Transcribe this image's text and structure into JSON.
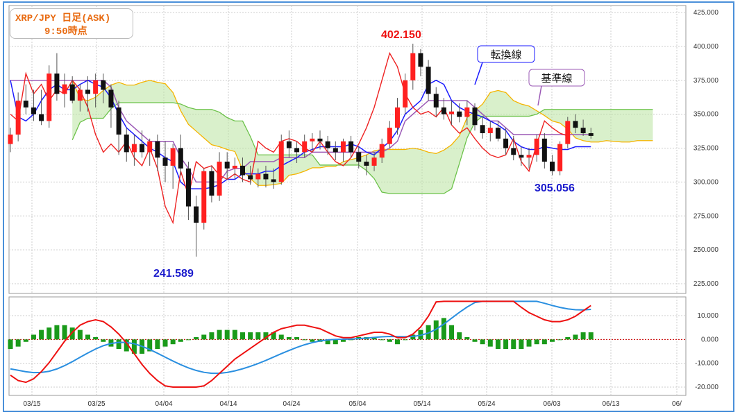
{
  "title_line1": "XRP/JPY 日足(ASK)",
  "title_line2": "9:50時点",
  "colors": {
    "bullish": "#ff2020",
    "bearish": "#111111",
    "tenkan": "#1a1aff",
    "kijun": "#9b59b6",
    "span_a": "#f5b400",
    "span_b": "#6cc24a",
    "chikou": "#ee2222",
    "macd": "#ee1111",
    "signal": "#2a8fe0",
    "histogram": "#1a9a1a",
    "annotation_high": "#ee1111",
    "annotation_low": "#1a1acc"
  },
  "chart_data": [
    {
      "type": "candlestick",
      "title": "XRP/JPY 日足(ASK)",
      "ylim": [
        220,
        425
      ],
      "y_ticks": [
        "425.000",
        "400.000",
        "375.000",
        "350.000",
        "325.000",
        "300.000",
        "275.000",
        "250.000",
        "225.000"
      ],
      "x_ticks": [
        "03/15",
        "03/25",
        "04/04",
        "04/14",
        "04/24",
        "05/04",
        "05/14",
        "05/24",
        "06/03",
        "06/13",
        "06/"
      ],
      "candles": [
        [
          328,
          340,
          322,
          335
        ],
        [
          335,
          366,
          330,
          360
        ],
        [
          360,
          372,
          350,
          355
        ],
        [
          355,
          368,
          345,
          350
        ],
        [
          350,
          368,
          342,
          345
        ],
        [
          345,
          386,
          340,
          380
        ],
        [
          380,
          395,
          360,
          365
        ],
        [
          365,
          380,
          355,
          372
        ],
        [
          372,
          378,
          358,
          360
        ],
        [
          360,
          372,
          352,
          368
        ],
        [
          368,
          378,
          352,
          365
        ],
        [
          365,
          380,
          355,
          375
        ],
        [
          375,
          380,
          358,
          368
        ],
        [
          368,
          372,
          340,
          355
        ],
        [
          355,
          360,
          320,
          335
        ],
        [
          335,
          340,
          315,
          322
        ],
        [
          322,
          335,
          312,
          328
        ],
        [
          328,
          338,
          318,
          322
        ],
        [
          322,
          332,
          312,
          330
        ],
        [
          330,
          335,
          308,
          318
        ],
        [
          318,
          330,
          300,
          312
        ],
        [
          312,
          328,
          295,
          325
        ],
        [
          325,
          335,
          305,
          310
        ],
        [
          310,
          315,
          272,
          282
        ],
        [
          282,
          290,
          245,
          270
        ],
        [
          270,
          310,
          265,
          308
        ],
        [
          308,
          312,
          285,
          290
        ],
        [
          290,
          322,
          286,
          315
        ],
        [
          315,
          322,
          302,
          310
        ],
        [
          310,
          318,
          302,
          312
        ],
        [
          312,
          318,
          300,
          305
        ],
        [
          305,
          312,
          298,
          302
        ],
        [
          302,
          310,
          296,
          306
        ],
        [
          306,
          312,
          296,
          302
        ],
        [
          302,
          310,
          295,
          300
        ],
        [
          300,
          335,
          298,
          330
        ],
        [
          330,
          338,
          318,
          325
        ],
        [
          325,
          330,
          314,
          322
        ],
        [
          322,
          335,
          318,
          330
        ],
        [
          330,
          336,
          322,
          332
        ],
        [
          332,
          338,
          324,
          330
        ],
        [
          330,
          334,
          320,
          325
        ],
        [
          325,
          330,
          316,
          322
        ],
        [
          322,
          332,
          315,
          330
        ],
        [
          330,
          334,
          318,
          322
        ],
        [
          322,
          326,
          310,
          315
        ],
        [
          315,
          320,
          305,
          312
        ],
        [
          312,
          322,
          308,
          318
        ],
        [
          318,
          332,
          314,
          328
        ],
        [
          328,
          345,
          325,
          340
        ],
        [
          340,
          362,
          335,
          355
        ],
        [
          355,
          380,
          350,
          375
        ],
        [
          375,
          402,
          368,
          395
        ],
        [
          395,
          398,
          378,
          385
        ],
        [
          385,
          390,
          360,
          365
        ],
        [
          365,
          370,
          348,
          355
        ],
        [
          355,
          362,
          346,
          350
        ],
        [
          350,
          360,
          342,
          352
        ],
        [
          352,
          358,
          344,
          348
        ],
        [
          348,
          360,
          342,
          355
        ],
        [
          355,
          358,
          338,
          342
        ],
        [
          342,
          348,
          332,
          336
        ],
        [
          336,
          345,
          330,
          340
        ],
        [
          340,
          345,
          330,
          332
        ],
        [
          332,
          340,
          320,
          325
        ],
        [
          325,
          334,
          316,
          320
        ],
        [
          320,
          326,
          312,
          318
        ],
        [
          318,
          325,
          310,
          320
        ],
        [
          320,
          335,
          315,
          332
        ],
        [
          332,
          336,
          310,
          315
        ],
        [
          315,
          320,
          305,
          308
        ],
        [
          308,
          330,
          305,
          328
        ],
        [
          328,
          348,
          325,
          345
        ],
        [
          345,
          350,
          336,
          340
        ],
        [
          340,
          346,
          334,
          336
        ],
        [
          336,
          340,
          332,
          334
        ]
      ],
      "series": [
        {
          "name": "転換線",
          "values": [
            375,
            348,
            345,
            350,
            360,
            368,
            372,
            368,
            368,
            372,
            375,
            372,
            370,
            362,
            350,
            340,
            335,
            330,
            325,
            322,
            318,
            315,
            300,
            295,
            295,
            295,
            296,
            298,
            302,
            302,
            306,
            306,
            306,
            308,
            308,
            312,
            315,
            318,
            322,
            324,
            326,
            326,
            326,
            326,
            328,
            326,
            322,
            320,
            325,
            330,
            338,
            350,
            355,
            360,
            372,
            375,
            372,
            360,
            355,
            352,
            350,
            348,
            345,
            342,
            338,
            330,
            326,
            324,
            324,
            326,
            325,
            324,
            324,
            326,
            326,
            326
          ]
        },
        {
          "name": "基準線",
          "values": [
            375,
            375,
            375,
            375,
            375,
            375,
            375,
            375,
            375,
            375,
            375,
            375,
            375,
            370,
            355,
            345,
            340,
            335,
            330,
            330,
            330,
            330,
            318,
            310,
            300,
            300,
            300,
            300,
            308,
            310,
            310,
            315,
            315,
            315,
            315,
            318,
            318,
            318,
            318,
            322,
            322,
            322,
            322,
            322,
            322,
            322,
            322,
            322,
            322,
            325,
            330,
            345,
            350,
            355,
            360,
            360,
            360,
            360,
            360,
            360,
            355,
            350,
            345,
            345,
            340,
            335,
            335,
            335,
            335,
            335,
            335,
            335,
            335,
            335,
            335,
            335
          ]
        }
      ],
      "annotations": [
        {
          "text": "402.150",
          "kind": "high"
        },
        {
          "text": "241.589",
          "kind": "low"
        },
        {
          "text": "305.056",
          "kind": "low"
        },
        {
          "text": "転換線",
          "kind": "label"
        },
        {
          "text": "基準線",
          "kind": "label"
        }
      ]
    },
    {
      "type": "macd",
      "ylim": [
        -22,
        18
      ],
      "y_ticks": [
        "10.000",
        "0.000",
        "-10.000",
        "-20.000"
      ],
      "histogram": [
        -4,
        -3,
        -1,
        2,
        4,
        5,
        6,
        6,
        5,
        4,
        2,
        1,
        -1,
        -3,
        -4,
        -5,
        -6,
        -6,
        -5,
        -4,
        -3,
        -2,
        -1,
        0,
        1,
        2,
        3,
        4,
        4,
        4,
        3,
        3,
        3,
        3,
        3,
        2,
        1,
        1,
        0,
        -1,
        -1,
        -2,
        -2,
        -1,
        0,
        1,
        1,
        1,
        0,
        -1,
        -2,
        0,
        2,
        4,
        6,
        8,
        9,
        6,
        3,
        1,
        -1,
        -2,
        -3,
        -4,
        -4,
        -4,
        -4,
        -3,
        -2,
        -2,
        -1,
        0,
        1,
        2,
        3,
        3
      ]
    }
  ]
}
